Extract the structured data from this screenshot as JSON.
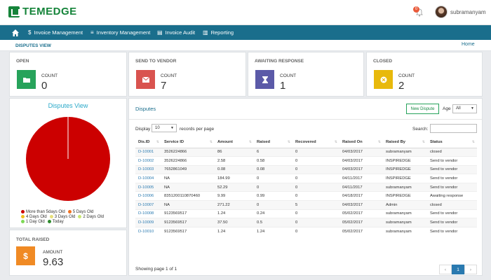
{
  "brand": {
    "name": "TEMEDGE"
  },
  "header": {
    "notification_count": "0",
    "user_name": "subramanyam"
  },
  "nav": [
    {
      "icon": "$",
      "label": "Invoice Management"
    },
    {
      "icon": "≡",
      "label": "Inventory Management"
    },
    {
      "icon": "▤",
      "label": "Invoice Audit"
    },
    {
      "icon": "▥",
      "label": "Reporting"
    }
  ],
  "breadcrumb": {
    "title": "DISPUTES VIEW",
    "home": "Home"
  },
  "colors": {
    "brand": "#15843a",
    "nav": "#1a6e8c",
    "open": "#27a35b",
    "vendor": "#d9534f",
    "awaiting": "#5b5aa8",
    "closed": "#e8b90c",
    "raised": "#f08a24"
  },
  "stats": [
    {
      "title": "OPEN",
      "label": "COUNT",
      "value": "0",
      "icon": "folder-icon"
    },
    {
      "title": "SEND TO VENDOR",
      "label": "COUNT",
      "value": "7",
      "icon": "envelope-icon"
    },
    {
      "title": "AWAITING RESPONSE",
      "label": "COUNT",
      "value": "1",
      "icon": "hourglass-icon"
    },
    {
      "title": "CLOSED",
      "label": "COUNT",
      "value": "2",
      "icon": "close-circle-icon"
    }
  ],
  "pie": {
    "title": "Disputes View",
    "legend": [
      {
        "label": "More than 5days Old",
        "color": "#cc0000"
      },
      {
        "label": "5 Days Old",
        "color": "#f07020"
      },
      {
        "label": "4 Days Old",
        "color": "#f0c020"
      },
      {
        "label": "3 Days Old",
        "color": "#e8e07a"
      },
      {
        "label": "2 Days Old",
        "color": "#c8e870"
      },
      {
        "label": "1 Day Old",
        "color": "#7ed957"
      },
      {
        "label": "Today",
        "color": "#2e8b2e"
      }
    ],
    "slices": [
      {
        "label": "More than 5days Old",
        "value": 10
      }
    ]
  },
  "total_raised": {
    "title": "TOTAL RAISED",
    "label": "AMOUNT",
    "value": "9.63",
    "icon": "$"
  },
  "disputes": {
    "title": "Disputes",
    "new_button": "New Dispute",
    "age_label": "Age",
    "age_value": "All",
    "display_label": "Display",
    "length_value": "10",
    "records_label": "records per page",
    "search_label": "Search:",
    "columns": [
      "Dis.ID",
      "Service ID",
      "Amount",
      "Raised",
      "Recovered",
      "Raised On",
      "Raised By",
      "Status"
    ],
    "rows": [
      [
        "D-10001",
        "3526224866",
        "86",
        "6",
        "0",
        "04/03/2017",
        "subramanyam",
        "closed"
      ],
      [
        "D-10002",
        "3526224866",
        "2.58",
        "0.58",
        "0",
        "04/03/2017",
        "INSPIREDGE",
        "Send to vendor"
      ],
      [
        "D-10003",
        "7652861049",
        "0.08",
        "0.08",
        "0",
        "04/03/2017",
        "INSPIREDGE",
        "Send to vendor"
      ],
      [
        "D-10004",
        "NA",
        "184.99",
        "0",
        "0",
        "04/11/2017",
        "INSPIREDGE",
        "Send to vendor"
      ],
      [
        "D-10005",
        "NA",
        "52.29",
        "0",
        "0",
        "04/11/2017",
        "subramanyam",
        "Send to vendor"
      ],
      [
        "D-10006",
        "8351200110870460",
        "9.99",
        "0.99",
        "0",
        "04/18/2017",
        "INSPIREDGE",
        "Awaiting response"
      ],
      [
        "D-10007",
        "NA",
        "271.22",
        "0",
        "5",
        "04/03/2017",
        "Admin",
        "closed"
      ],
      [
        "D-10008",
        "9123569517",
        "1.24",
        "0.24",
        "0",
        "05/02/2017",
        "subramanyam",
        "Send to vendor"
      ],
      [
        "D-10009",
        "9123569517",
        "37.50",
        "0.5",
        "0",
        "05/02/2017",
        "subramanyam",
        "Send to vendor"
      ],
      [
        "D-10010",
        "9123569517",
        "1.24",
        "1.24",
        "0",
        "05/02/2017",
        "subramanyam",
        "Send to vendor"
      ]
    ],
    "showing": "Showing page 1 of 1",
    "pager": [
      "‹",
      "1",
      "›"
    ]
  }
}
